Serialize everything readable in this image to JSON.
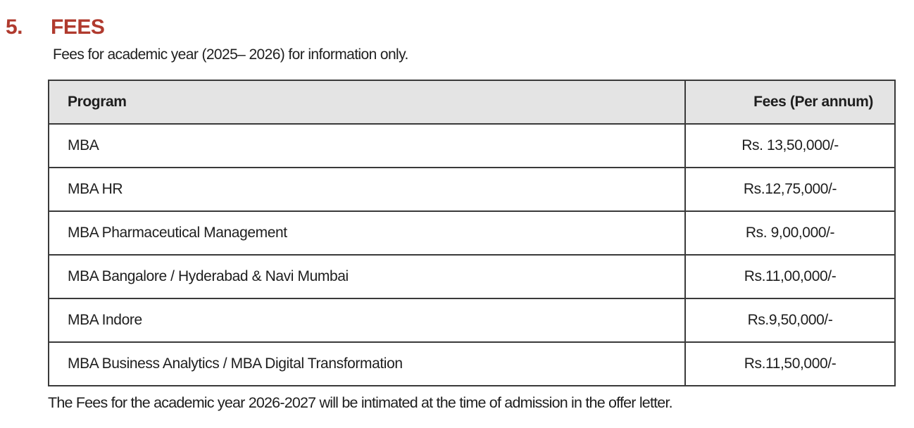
{
  "heading": {
    "number": "5.",
    "title": "FEES"
  },
  "subtitle": "Fees for academic year (2025– 2026) for information only.",
  "table": {
    "headers": [
      "Program",
      "Fees (Per annum)"
    ],
    "rows": [
      {
        "program": "MBA",
        "fee": "Rs. 13,50,000/-"
      },
      {
        "program": "MBA HR",
        "fee": "Rs.12,75,000/-"
      },
      {
        "program": "MBA Pharmaceutical Management",
        "fee": "Rs. 9,00,000/-"
      },
      {
        "program": "MBA Bangalore / Hyderabad & Navi Mumbai",
        "fee": "Rs.11,00,000/-"
      },
      {
        "program": "MBA Indore",
        "fee": "Rs.9,50,000/-"
      },
      {
        "program": "MBA Business Analytics / MBA Digital Transformation",
        "fee": "Rs.11,50,000/-"
      }
    ]
  },
  "footer_note": "The Fees for the academic year 2026-2027 will be intimated at the time of admission in the offer letter.",
  "colors": {
    "heading": "#B03A2E",
    "header_bg": "#E4E4E4",
    "border": "#3A3A3A",
    "text": "#1E1E1E"
  }
}
